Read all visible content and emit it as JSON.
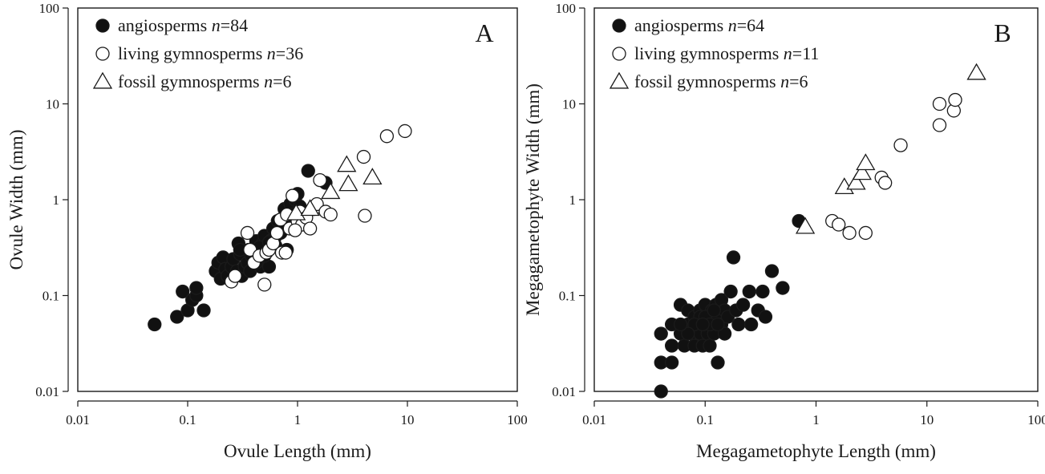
{
  "chart_data": [
    {
      "type": "scatter",
      "panel_label": "A",
      "xlabel": "Ovule Length (mm)",
      "ylabel": "Ovule Width (mm)",
      "xscale": "log",
      "yscale": "log",
      "xlim": [
        0.01,
        100
      ],
      "ylim": [
        0.01,
        100
      ],
      "xticks": [
        "0.01",
        "0.1",
        "1",
        "10",
        "100"
      ],
      "yticks": [
        "0.01",
        "0.1",
        "1",
        "10",
        "100"
      ],
      "grid": false,
      "legend_position": "top-left",
      "series": [
        {
          "marker": "filled-circle",
          "legend": {
            "prefix": "angiosperms ",
            "var": "n",
            "suffix": "=84"
          },
          "points": [
            [
              0.05,
              0.05
            ],
            [
              0.08,
              0.06
            ],
            [
              0.09,
              0.11
            ],
            [
              0.1,
              0.07
            ],
            [
              0.11,
              0.09
            ],
            [
              0.12,
              0.1
            ],
            [
              0.12,
              0.12
            ],
            [
              0.14,
              0.07
            ],
            [
              0.18,
              0.18
            ],
            [
              0.19,
              0.22
            ],
            [
              0.2,
              0.15
            ],
            [
              0.21,
              0.25
            ],
            [
              0.22,
              0.19
            ],
            [
              0.23,
              0.16
            ],
            [
              0.25,
              0.2
            ],
            [
              0.26,
              0.24
            ],
            [
              0.28,
              0.18
            ],
            [
              0.29,
              0.35
            ],
            [
              0.3,
              0.27
            ],
            [
              0.31,
              0.16
            ],
            [
              0.33,
              0.2
            ],
            [
              0.35,
              0.22
            ],
            [
              0.36,
              0.3
            ],
            [
              0.37,
              0.18
            ],
            [
              0.4,
              0.24
            ],
            [
              0.42,
              0.37
            ],
            [
              0.44,
              0.28
            ],
            [
              0.46,
              0.2
            ],
            [
              0.48,
              0.35
            ],
            [
              0.5,
              0.42
            ],
            [
              0.53,
              0.3
            ],
            [
              0.55,
              0.2
            ],
            [
              0.58,
              0.38
            ],
            [
              0.6,
              0.5
            ],
            [
              0.63,
              0.33
            ],
            [
              0.66,
              0.6
            ],
            [
              0.7,
              0.45
            ],
            [
              0.73,
              0.55
            ],
            [
              0.76,
              0.8
            ],
            [
              0.8,
              0.3
            ],
            [
              0.82,
              0.65
            ],
            [
              0.86,
              0.9
            ],
            [
              0.9,
              0.7
            ],
            [
              0.95,
              1.0
            ],
            [
              1.0,
              1.15
            ],
            [
              1.05,
              0.85
            ],
            [
              1.25,
              2.0
            ],
            [
              1.8,
              1.5
            ],
            [
              0.42,
              0.22
            ],
            [
              0.5,
              0.26
            ],
            [
              0.62,
              0.4
            ],
            [
              0.3,
              0.3
            ],
            [
              0.38,
              0.26
            ],
            [
              0.45,
              0.32
            ],
            [
              0.55,
              0.36
            ],
            [
              0.7,
              0.5
            ]
          ]
        },
        {
          "marker": "open-circle",
          "legend": {
            "prefix": "living gymnosperms ",
            "var": "n",
            "suffix": "=36"
          },
          "points": [
            [
              0.25,
              0.14
            ],
            [
              0.27,
              0.16
            ],
            [
              0.35,
              0.45
            ],
            [
              0.37,
              0.3
            ],
            [
              0.4,
              0.22
            ],
            [
              0.45,
              0.26
            ],
            [
              0.5,
              0.13
            ],
            [
              0.52,
              0.28
            ],
            [
              0.55,
              0.3
            ],
            [
              0.6,
              0.35
            ],
            [
              0.65,
              0.45
            ],
            [
              0.7,
              0.62
            ],
            [
              0.72,
              0.28
            ],
            [
              0.8,
              0.7
            ],
            [
              0.85,
              0.5
            ],
            [
              0.9,
              1.1
            ],
            [
              1.0,
              0.6
            ],
            [
              1.05,
              0.75
            ],
            [
              1.1,
              0.55
            ],
            [
              1.2,
              0.65
            ],
            [
              1.3,
              0.5
            ],
            [
              1.4,
              0.8
            ],
            [
              1.5,
              0.9
            ],
            [
              1.6,
              1.6
            ],
            [
              1.8,
              0.75
            ],
            [
              2.0,
              0.7
            ],
            [
              4.0,
              2.8
            ],
            [
              4.1,
              0.68
            ],
            [
              6.5,
              4.6
            ],
            [
              9.5,
              5.2
            ],
            [
              0.78,
              0.28
            ],
            [
              0.95,
              0.48
            ]
          ]
        },
        {
          "marker": "open-triangle",
          "legend": {
            "prefix": "fossil gymnosperms ",
            "var": "n",
            "suffix": "=6"
          },
          "points": [
            [
              0.97,
              0.72
            ],
            [
              1.3,
              0.8
            ],
            [
              2.0,
              1.2
            ],
            [
              2.8,
              2.3
            ],
            [
              2.9,
              1.45
            ],
            [
              4.8,
              1.7
            ]
          ]
        }
      ]
    },
    {
      "type": "scatter",
      "panel_label": "B",
      "xlabel": "Megagametophyte Length (mm)",
      "ylabel": "Megagametophyte Width (mm)",
      "xscale": "log",
      "yscale": "log",
      "xlim": [
        0.01,
        100
      ],
      "ylim": [
        0.01,
        100
      ],
      "xticks": [
        "0.01",
        "0.1",
        "1",
        "10",
        "100"
      ],
      "yticks": [
        "0.01",
        "0.1",
        "1",
        "10",
        "100"
      ],
      "grid": false,
      "legend_position": "top-left",
      "series": [
        {
          "marker": "filled-circle",
          "legend": {
            "prefix": "angiosperms ",
            "var": "n",
            "suffix": "=64"
          },
          "points": [
            [
              0.04,
              0.01
            ],
            [
              0.04,
              0.02
            ],
            [
              0.04,
              0.04
            ],
            [
              0.05,
              0.02
            ],
            [
              0.05,
              0.03
            ],
            [
              0.05,
              0.05
            ],
            [
              0.06,
              0.04
            ],
            [
              0.06,
              0.08
            ],
            [
              0.065,
              0.03
            ],
            [
              0.07,
              0.05
            ],
            [
              0.07,
              0.07
            ],
            [
              0.075,
              0.04
            ],
            [
              0.08,
              0.03
            ],
            [
              0.08,
              0.06
            ],
            [
              0.085,
              0.05
            ],
            [
              0.09,
              0.04
            ],
            [
              0.09,
              0.07
            ],
            [
              0.095,
              0.03
            ],
            [
              0.1,
              0.05
            ],
            [
              0.1,
              0.08
            ],
            [
              0.105,
              0.04
            ],
            [
              0.11,
              0.06
            ],
            [
              0.11,
              0.03
            ],
            [
              0.115,
              0.07
            ],
            [
              0.12,
              0.05
            ],
            [
              0.12,
              0.04
            ],
            [
              0.125,
              0.08
            ],
            [
              0.13,
              0.02
            ],
            [
              0.13,
              0.06
            ],
            [
              0.14,
              0.05
            ],
            [
              0.14,
              0.09
            ],
            [
              0.15,
              0.07
            ],
            [
              0.15,
              0.04
            ],
            [
              0.16,
              0.06
            ],
            [
              0.17,
              0.11
            ],
            [
              0.18,
              0.25
            ],
            [
              0.19,
              0.07
            ],
            [
              0.2,
              0.05
            ],
            [
              0.22,
              0.08
            ],
            [
              0.25,
              0.11
            ],
            [
              0.26,
              0.05
            ],
            [
              0.3,
              0.07
            ],
            [
              0.33,
              0.11
            ],
            [
              0.35,
              0.06
            ],
            [
              0.4,
              0.18
            ],
            [
              0.5,
              0.12
            ],
            [
              0.7,
              0.6
            ],
            [
              0.09,
              0.06
            ],
            [
              0.08,
              0.05
            ],
            [
              0.07,
              0.04
            ],
            [
              0.1,
              0.06
            ],
            [
              0.12,
              0.07
            ],
            [
              0.06,
              0.05
            ],
            [
              0.11,
              0.05
            ],
            [
              0.095,
              0.05
            ],
            [
              0.13,
              0.05
            ]
          ]
        },
        {
          "marker": "open-circle",
          "legend": {
            "prefix": "living gymnosperms ",
            "var": "n",
            "suffix": "=11"
          },
          "points": [
            [
              1.4,
              0.6
            ],
            [
              1.6,
              0.55
            ],
            [
              2.0,
              0.45
            ],
            [
              2.8,
              0.45
            ],
            [
              3.9,
              1.7
            ],
            [
              4.2,
              1.5
            ],
            [
              5.8,
              3.7
            ],
            [
              13.0,
              6.0
            ],
            [
              13.0,
              10.0
            ],
            [
              17.5,
              8.5
            ],
            [
              18.0,
              11.0
            ]
          ]
        },
        {
          "marker": "open-triangle",
          "legend": {
            "prefix": "fossil gymnosperms ",
            "var": "n",
            "suffix": "=6"
          },
          "points": [
            [
              0.8,
              0.52
            ],
            [
              1.8,
              1.35
            ],
            [
              2.3,
              1.5
            ],
            [
              2.6,
              1.9
            ],
            [
              2.8,
              2.4
            ],
            [
              28.0,
              21.0
            ]
          ]
        }
      ]
    }
  ]
}
